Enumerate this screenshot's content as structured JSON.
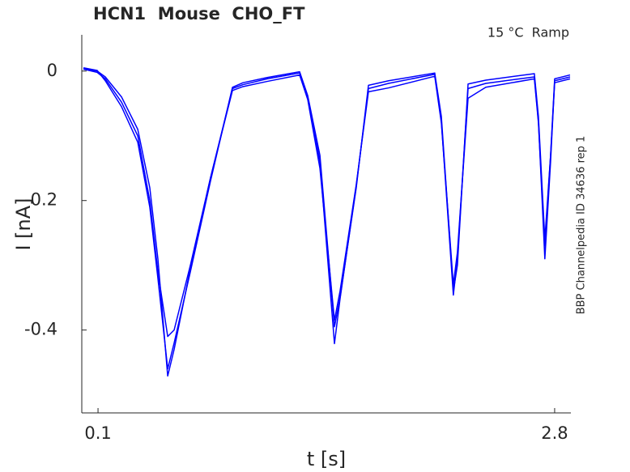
{
  "chart_data": {
    "type": "line",
    "title": "HCN1  Mouse  CHO_FT",
    "annotation": "15 °C  Ramp",
    "side_note": "BBP Channelpedia ID 34636 rep 1",
    "xlabel": "t [s]",
    "ylabel": "I [nA]",
    "x": [
      0.014,
      0.095,
      0.143,
      0.239,
      0.335,
      0.406,
      0.454,
      0.512,
      0.55,
      0.646,
      0.765,
      0.895,
      0.957,
      1.1,
      1.292,
      1.34,
      1.412,
      1.498,
      1.531,
      1.627,
      1.699,
      1.818,
      2.091,
      2.13,
      2.201,
      2.225,
      2.288,
      2.393,
      2.68,
      2.704,
      2.742,
      2.776,
      2.8,
      2.891
    ],
    "series": [
      {
        "color": "#0000ff",
        "values": [
          0.004,
          0.0,
          -0.009,
          -0.04,
          -0.09,
          -0.18,
          -0.29,
          -0.471,
          -0.43,
          -0.305,
          -0.165,
          -0.027,
          -0.021,
          -0.012,
          -0.003,
          -0.04,
          -0.14,
          -0.421,
          -0.352,
          -0.177,
          -0.027,
          -0.019,
          -0.005,
          -0.077,
          -0.346,
          -0.29,
          -0.027,
          -0.019,
          -0.009,
          -0.077,
          -0.29,
          -0.14,
          -0.015,
          -0.009
        ]
      },
      {
        "color": "#0000ff",
        "values": [
          0.003,
          -0.002,
          -0.012,
          -0.048,
          -0.1,
          -0.2,
          -0.31,
          -0.41,
          -0.4,
          -0.3,
          -0.165,
          -0.03,
          -0.024,
          -0.016,
          -0.006,
          -0.044,
          -0.15,
          -0.385,
          -0.34,
          -0.175,
          -0.032,
          -0.026,
          -0.008,
          -0.08,
          -0.33,
          -0.28,
          -0.042,
          -0.025,
          -0.012,
          -0.08,
          -0.27,
          -0.13,
          -0.018,
          -0.012
        ]
      },
      {
        "color": "#0000ff",
        "values": [
          0.005,
          0.001,
          -0.015,
          -0.055,
          -0.11,
          -0.21,
          -0.32,
          -0.46,
          -0.42,
          -0.31,
          -0.17,
          -0.025,
          -0.018,
          -0.01,
          -0.001,
          -0.038,
          -0.13,
          -0.395,
          -0.35,
          -0.18,
          -0.022,
          -0.015,
          -0.003,
          -0.07,
          -0.34,
          -0.3,
          -0.02,
          -0.014,
          -0.004,
          -0.07,
          -0.26,
          -0.13,
          -0.012,
          -0.006
        ]
      }
    ],
    "xlim": [
      0.004,
      2.896
    ],
    "ylim": [
      -0.528,
      0.056
    ],
    "xticks": [
      0.1,
      2.8
    ],
    "yticks": [
      -0.4,
      -0.2,
      0
    ]
  }
}
